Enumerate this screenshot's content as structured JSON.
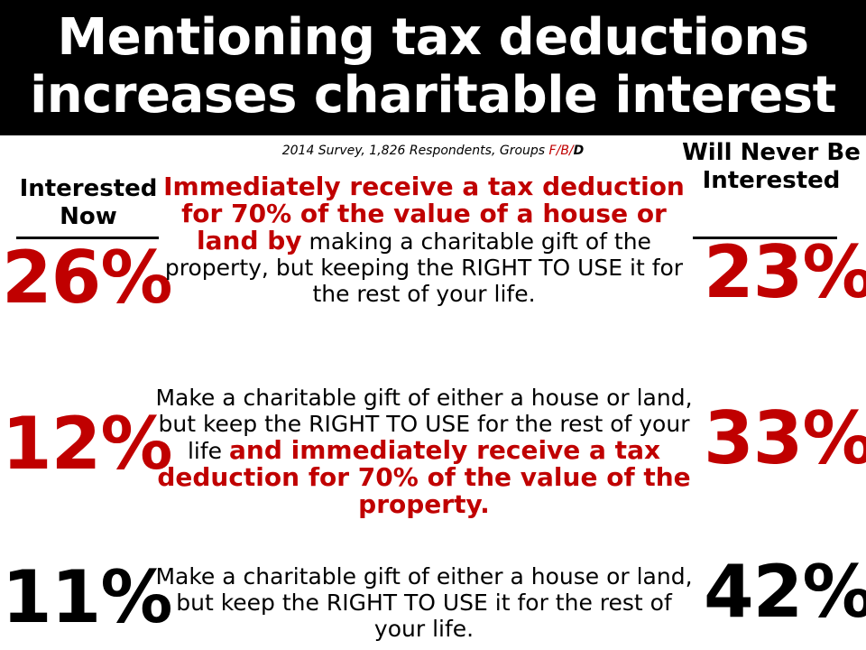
{
  "title": {
    "line1": "Mentioning tax deductions",
    "line2": "increases charitable interest"
  },
  "subtitle": {
    "prefix": "2014 Survey, 1,826 Respondents, Groups ",
    "group_f": "F",
    "sep1": "/",
    "group_b": "B",
    "sep2": "/",
    "group_d": "D"
  },
  "columns": {
    "left_header": "Interested Now",
    "right_header": "Will Never Be Interested"
  },
  "rows": [
    {
      "left_pct": "26%",
      "right_pct": "23%",
      "highlight_first": "Immediately receive a tax deduction for 70% of the value of a house or land by",
      "plain_after": " making a charitable gift of the property, but keeping the RIGHT TO USE it for the rest of your life."
    },
    {
      "left_pct": "12%",
      "right_pct": "33%",
      "plain_before": "Make a charitable gift of either a house or land, but keep the RIGHT TO USE for the rest of your life ",
      "highlight_after": "and immediately receive a tax deduction for 70% of the value of the property."
    },
    {
      "left_pct": "11%",
      "right_pct": "42%",
      "plain": "Make a charitable gift of either a house or land, but keep the RIGHT TO USE it for the rest of your life."
    }
  ],
  "colors": {
    "accent_red": "#c00000",
    "title_bg": "#000000",
    "title_text": "#ffffff"
  }
}
